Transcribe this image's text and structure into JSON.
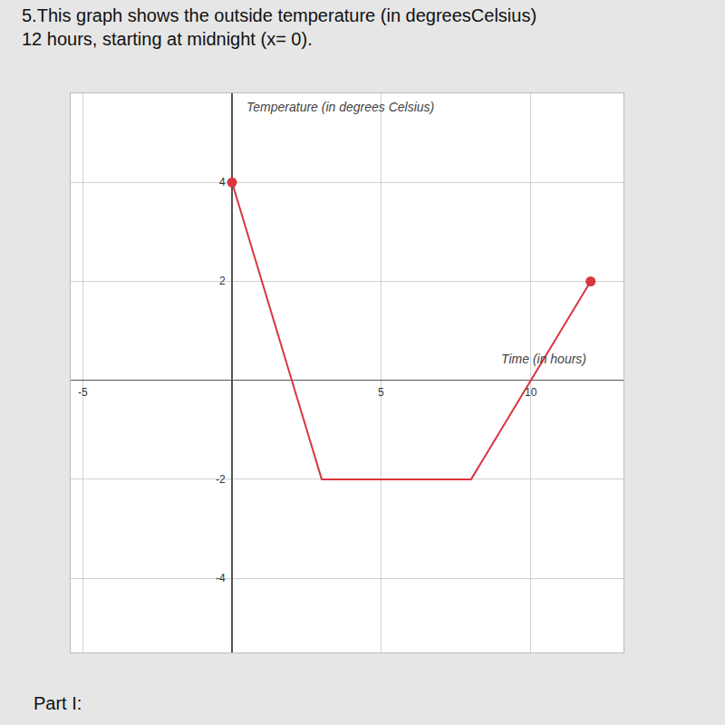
{
  "chart_data": {
    "type": "line",
    "title": [
      "5.This graph shows the outside temperature (in degreesCelsius)",
      "12 hours, starting at midnight (x= 0)."
    ],
    "x_label": "Time (in hours)",
    "y_label": "Temperature (in degrees Celsius)",
    "footer": "Part I:",
    "x": [
      0,
      3,
      8,
      12
    ],
    "values": [
      4,
      -2,
      -2,
      2
    ],
    "color": "#d9363e",
    "marker": "endpoints",
    "xlim": [
      -5.4,
      13.1
    ],
    "ylim": [
      -5.5,
      5.8
    ],
    "xticks": [
      -5,
      5,
      10
    ],
    "yticks": [
      -4,
      -2,
      2,
      4
    ],
    "grid": true
  }
}
